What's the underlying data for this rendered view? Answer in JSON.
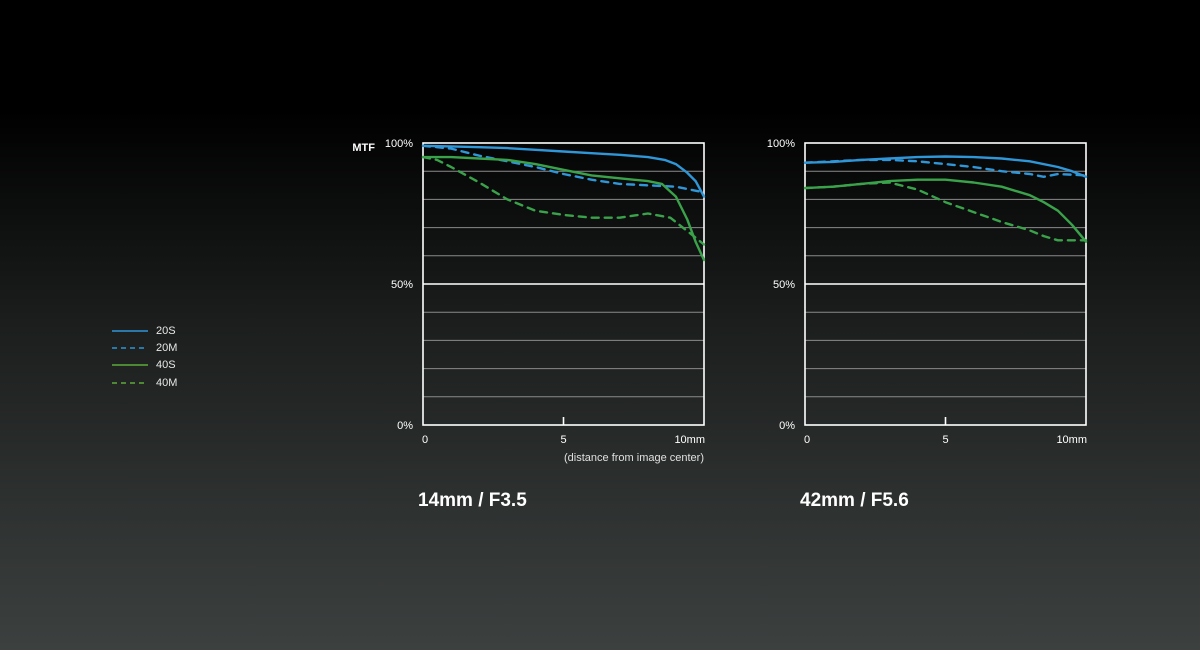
{
  "page": {
    "background_top": "#000000",
    "background_bottom": "#3c403f"
  },
  "legend": {
    "items": [
      {
        "label": "20S",
        "color": "#2f96d8",
        "dash": false
      },
      {
        "label": "20M",
        "color": "#2f96d8",
        "dash": true
      },
      {
        "label": "40S",
        "color": "#5daa3a",
        "dash": false
      },
      {
        "label": "40M",
        "color": "#5daa3a",
        "dash": true
      }
    ]
  },
  "chart_data": [
    {
      "type": "line",
      "title": "14mm / F3.5",
      "ylabel": "MTF",
      "xlabel": "(distance from image center)",
      "xlim": [
        0,
        10
      ],
      "ylim": [
        0,
        100
      ],
      "xticks": [
        0,
        5,
        10
      ],
      "xtick_labels": [
        "0",
        "5",
        "10mm"
      ],
      "yticks": [
        0,
        50,
        100
      ],
      "ytick_labels": [
        "0%",
        "50%",
        "100%"
      ],
      "grid": true,
      "grid_step": 10,
      "series": [
        {
          "name": "20S",
          "color": "#2f96d8",
          "dash": false,
          "x": [
            0,
            1,
            2,
            3,
            4,
            5,
            6,
            7,
            8,
            8.6,
            9,
            9.4,
            9.7,
            10
          ],
          "y": [
            99,
            98.8,
            98.5,
            98.2,
            97.6,
            97,
            96.4,
            95.8,
            95,
            94,
            92.5,
            89.5,
            86.5,
            81
          ]
        },
        {
          "name": "20M",
          "color": "#2f96d8",
          "dash": true,
          "x": [
            0,
            1,
            2,
            3,
            4,
            5,
            6,
            7,
            8,
            9,
            10
          ],
          "y": [
            99,
            98,
            95.5,
            93.5,
            91.5,
            89,
            87,
            85.5,
            85,
            84.5,
            82.5
          ]
        },
        {
          "name": "40S",
          "color": "#3aa24a",
          "dash": false,
          "x": [
            0,
            1,
            2,
            3,
            4,
            5,
            6,
            7,
            8,
            8.5,
            9,
            9.4,
            9.7,
            10
          ],
          "y": [
            95,
            95,
            94.5,
            94,
            92.5,
            90.5,
            88.5,
            87.5,
            86.5,
            85.5,
            81,
            73,
            65,
            58.5
          ]
        },
        {
          "name": "40M",
          "color": "#3aa24a",
          "dash": true,
          "x": [
            0,
            0.5,
            1,
            2,
            3,
            4,
            5,
            6,
            7,
            8,
            8.8,
            9.5,
            10
          ],
          "y": [
            95,
            94,
            91.5,
            86,
            80,
            76,
            74.5,
            73.5,
            73.5,
            75,
            73.5,
            68,
            64
          ]
        }
      ]
    },
    {
      "type": "line",
      "title": "42mm / F5.6",
      "xlim": [
        0,
        10
      ],
      "ylim": [
        0,
        100
      ],
      "xticks": [
        0,
        5,
        10
      ],
      "xtick_labels": [
        "0",
        "5",
        "10mm"
      ],
      "yticks": [
        0,
        50,
        100
      ],
      "ytick_labels": [
        "0%",
        "50%",
        "100%"
      ],
      "grid": true,
      "grid_step": 10,
      "series": [
        {
          "name": "20S",
          "color": "#2f96d8",
          "dash": false,
          "x": [
            0,
            1,
            2,
            3,
            4,
            5,
            6,
            7,
            8,
            9,
            9.5,
            10
          ],
          "y": [
            93,
            93.3,
            94,
            94.5,
            95,
            95.2,
            95,
            94.5,
            93.5,
            91.5,
            90,
            88
          ]
        },
        {
          "name": "20M",
          "color": "#2f96d8",
          "dash": true,
          "x": [
            0,
            1,
            2,
            3,
            4,
            5,
            6,
            7,
            8,
            8.5,
            9,
            10
          ],
          "y": [
            93,
            93.5,
            94,
            94,
            93.5,
            92.5,
            91.5,
            90,
            89,
            88,
            89,
            88.5
          ]
        },
        {
          "name": "40S",
          "color": "#3aa24a",
          "dash": false,
          "x": [
            0,
            1,
            2,
            3,
            4,
            5,
            6,
            7,
            8,
            8.5,
            9,
            9.5,
            10
          ],
          "y": [
            84,
            84.5,
            85.5,
            86.5,
            87,
            87,
            86,
            84.5,
            81.5,
            79,
            76,
            71,
            65
          ]
        },
        {
          "name": "40M",
          "color": "#3aa24a",
          "dash": true,
          "x": [
            0,
            1,
            2,
            3,
            4,
            5,
            6,
            7,
            8,
            8.5,
            9,
            10
          ],
          "y": [
            84,
            84.5,
            85.5,
            86,
            83.5,
            79,
            75.5,
            72,
            69,
            67,
            65.5,
            65.5
          ]
        }
      ]
    }
  ]
}
